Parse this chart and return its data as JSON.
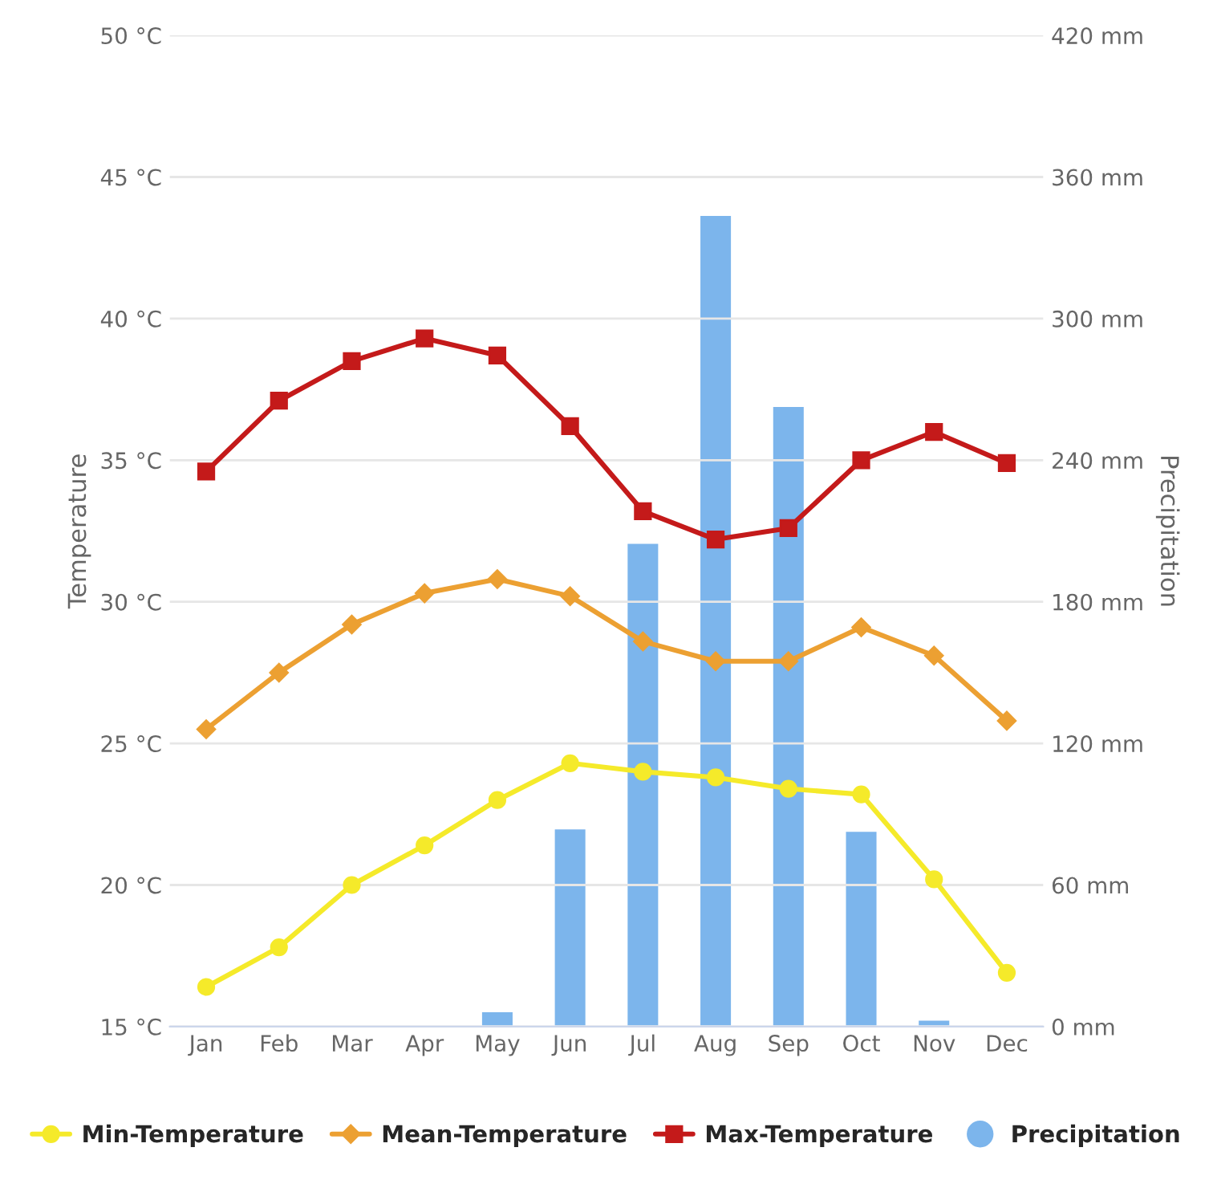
{
  "chart_data": {
    "type": "line",
    "ylabel": "Temperature",
    "y2label": "Precipitation",
    "categories": [
      "Jan",
      "Feb",
      "Mar",
      "Apr",
      "May",
      "Jun",
      "Jul",
      "Aug",
      "Sep",
      "Oct",
      "Nov",
      "Dec"
    ],
    "series": [
      {
        "name": "Min-Temperature",
        "color": "#f5ea2a",
        "marker": "circle",
        "values": [
          16.4,
          17.8,
          20.0,
          21.4,
          23.0,
          24.3,
          24.0,
          23.8,
          23.4,
          23.2,
          20.2,
          16.9
        ]
      },
      {
        "name": "Mean-Temperature",
        "color": "#eca032",
        "marker": "diamond",
        "values": [
          25.5,
          27.5,
          29.2,
          30.3,
          30.8,
          30.2,
          28.6,
          27.9,
          27.9,
          29.1,
          28.1,
          25.8
        ]
      },
      {
        "name": "Max-Temperature",
        "color": "#c41a1a",
        "marker": "square",
        "values": [
          34.6,
          37.1,
          38.5,
          39.3,
          38.7,
          36.2,
          33.2,
          32.2,
          32.6,
          35.0,
          36.0,
          34.9
        ]
      },
      {
        "name": "Precipitation",
        "type": "bar",
        "axis": "y2",
        "color": "#7cb5ec",
        "values": [
          null,
          null,
          null,
          null,
          6.6,
          84,
          205,
          344,
          263,
          83,
          3,
          null
        ]
      }
    ],
    "ylim": [
      15,
      50
    ],
    "yticks": [
      {
        "value": 15,
        "label": "15 °C"
      },
      {
        "value": 20,
        "label": "20 °C"
      },
      {
        "value": 25,
        "label": "25 °C"
      },
      {
        "value": 30,
        "label": "30 °C"
      },
      {
        "value": 35,
        "label": "35 °C"
      },
      {
        "value": 40,
        "label": "40 °C"
      },
      {
        "value": 45,
        "label": "45 °C"
      },
      {
        "value": 50,
        "label": "50 °C"
      }
    ],
    "y2lim": [
      0,
      420
    ],
    "y2ticks": [
      {
        "value": 0,
        "label": "0 mm"
      },
      {
        "value": 60,
        "label": "60 mm"
      },
      {
        "value": 120,
        "label": "120 mm"
      },
      {
        "value": 180,
        "label": "180 mm"
      },
      {
        "value": 240,
        "label": "240 mm"
      },
      {
        "value": 300,
        "label": "300 mm"
      },
      {
        "value": 360,
        "label": "360 mm"
      },
      {
        "value": 420,
        "label": "420 mm"
      }
    ],
    "grid": "y",
    "legend": "bottom"
  }
}
